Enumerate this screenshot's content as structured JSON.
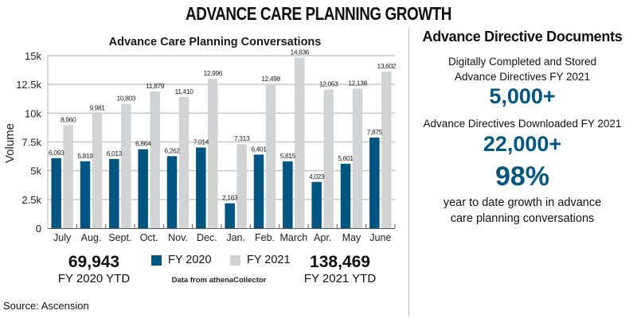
{
  "header": {
    "title": "ADVANCE CARE PLANNING GROWTH"
  },
  "chart_data": {
    "type": "bar",
    "title": "Advance Care Planning Conversations",
    "xlabel": "",
    "ylabel": "Volume",
    "ylim": [
      0,
      15000
    ],
    "yticks": [
      0,
      2500,
      5000,
      7500,
      10000,
      12500,
      15000
    ],
    "ytick_labels": [
      "0",
      "2.5k",
      "5k",
      "7.5k",
      "10k",
      "12.5k",
      "15k"
    ],
    "grid": true,
    "categories": [
      "July",
      "Aug.",
      "Sept.",
      "Oct.",
      "Nov.",
      "Dec.",
      "Jan.",
      "Feb.",
      "March",
      "Apr.",
      "May",
      "June"
    ],
    "series": [
      {
        "name": "FY 2020",
        "color": "#005581",
        "values": [
          6093,
          5819,
          6013,
          6864,
          6262,
          7014,
          2163,
          6401,
          5815,
          4023,
          5601,
          7875
        ],
        "labels": [
          "6,093",
          "5,819",
          "6,013",
          "6,864",
          "6,262",
          "7,014",
          "2,163",
          "6,401",
          "5,815",
          "4,023",
          "5,601",
          "7,875"
        ]
      },
      {
        "name": "FY 2021",
        "color": "#d1d3d4",
        "values": [
          8960,
          9981,
          10803,
          11879,
          11410,
          12996,
          7313,
          12498,
          14836,
          12053,
          12138,
          13602
        ],
        "labels": [
          "8,960",
          "9,981",
          "10,803",
          "11,879",
          "11,410",
          "12,996",
          "7,313",
          "12,498",
          "14,836",
          "12,053",
          "12,138",
          "13,602"
        ]
      }
    ],
    "legend_position": "bottom-center",
    "annotations": {
      "fy2020_ytd_value": "69,943",
      "fy2020_ytd_label": "FY 2020 YTD",
      "fy2021_ytd_value": "138,469",
      "fy2021_ytd_label": "FY 2021 YTD",
      "data_note": "Data from athenaCollector"
    }
  },
  "right_panel": {
    "title": "Advance Directive Documents",
    "stat1_desc_line1": "Digitally Completed and Stored",
    "stat1_desc_line2": "Advance Directives FY 2021",
    "stat1_value": "5,000+",
    "stat2_desc": "Advance Directives Downloaded FY 2021",
    "stat2_value": "22,000+",
    "stat3_value": "98%",
    "stat3_desc_line1": "year to date growth in advance",
    "stat3_desc_line2": "care planning conversations",
    "accent_color": "#005581"
  },
  "footer": {
    "source": "Source: Ascension"
  }
}
